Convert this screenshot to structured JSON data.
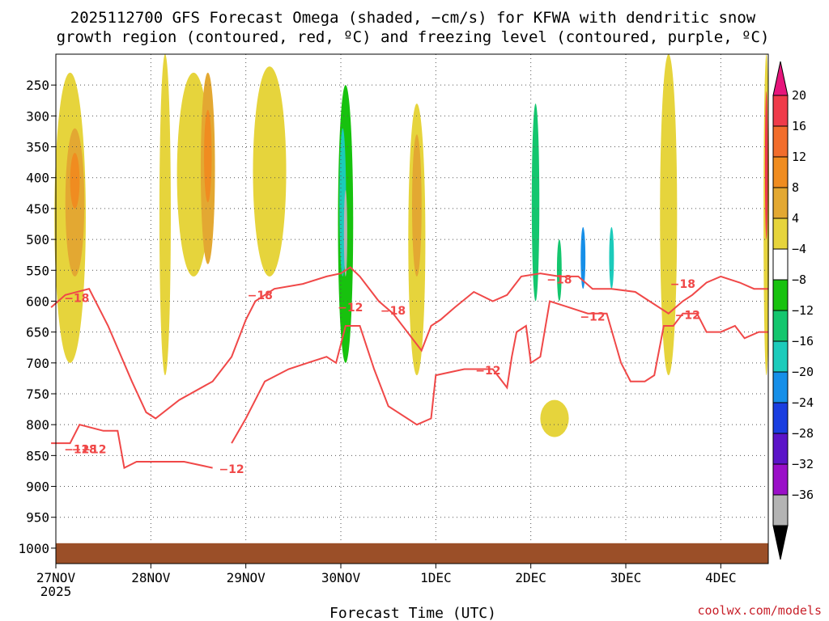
{
  "chart_data": {
    "type": "heatmap",
    "title_line1": "2025112700 GFS Forecast Omega (shaded, −cm/s) for KFWA with dendritic snow",
    "title_line2": "growth region (contoured, red, ºC) and freezing level (contoured, purple, ºC)",
    "xlabel": "Forecast Time (UTC)",
    "ylabel": "",
    "credit": "coolwx.com/models",
    "x_ticks": [
      "27NOV",
      "28NOV",
      "29NOV",
      "30NOV",
      "1DEC",
      "2DEC",
      "3DEC",
      "4DEC"
    ],
    "x_year": "2025",
    "x_range_days": [
      0,
      7.5
    ],
    "y_ticks": [
      250,
      300,
      350,
      400,
      450,
      500,
      550,
      600,
      650,
      700,
      750,
      800,
      850,
      900,
      950,
      1000
    ],
    "y_tick_labels": [
      "250",
      "300",
      "350",
      "400",
      "450",
      "500",
      "550",
      "600",
      "650",
      "700",
      "750",
      "800",
      "850",
      "900",
      "950",
      "1000"
    ],
    "y_range_hpa": [
      200,
      1025
    ],
    "colorbar": {
      "labels": [
        "20",
        "16",
        "12",
        "8",
        "4",
        "−4",
        "−8",
        "−12",
        "−16",
        "−20",
        "−24",
        "−28",
        "−32",
        "−36"
      ],
      "colors": [
        "#ef3b4a",
        "#f26d2c",
        "#f08c20",
        "#e3a832",
        "#e6d43c",
        "#ffffff",
        "#17c20e",
        "#14c66e",
        "#1ccbbb",
        "#168fe8",
        "#1a3ee0",
        "#5b14c8",
        "#9a0fc8",
        "#b4b4b4"
      ],
      "top_arrow_color": "#e6157b",
      "bottom_arrow_color": "#000000"
    },
    "contour_labels": [
      "−18",
      "−12",
      "−18",
      "−12",
      "−12",
      "−18",
      "−12",
      "−18",
      "−12",
      "−18",
      "−12",
      "−18",
      "−12"
    ],
    "contour_color": "#f04848",
    "ground_color": "#9b4f28",
    "shaded_regions": [
      {
        "day": 0.15,
        "p_top": 230,
        "p_bot": 700,
        "width": 0.33,
        "level": "4"
      },
      {
        "day": 0.2,
        "p_top": 320,
        "p_bot": 560,
        "width": 0.2,
        "level": "8"
      },
      {
        "day": 0.2,
        "p_top": 360,
        "p_bot": 450,
        "width": 0.1,
        "level": "12"
      },
      {
        "day": 1.15,
        "p_top": 200,
        "p_bot": 720,
        "width": 0.12,
        "level": "4"
      },
      {
        "day": 1.45,
        "p_top": 230,
        "p_bot": 560,
        "width": 0.35,
        "level": "4"
      },
      {
        "day": 1.6,
        "p_top": 230,
        "p_bot": 540,
        "width": 0.15,
        "level": "8"
      },
      {
        "day": 1.6,
        "p_top": 290,
        "p_bot": 440,
        "width": 0.08,
        "level": "12"
      },
      {
        "day": 2.25,
        "p_top": 220,
        "p_bot": 560,
        "width": 0.35,
        "level": "4"
      },
      {
        "day": 3.05,
        "p_top": 220,
        "p_bot": 870,
        "width": 0.32,
        "level": "-4"
      },
      {
        "day": 3.05,
        "p_top": 250,
        "p_bot": 700,
        "width": 0.16,
        "level": "-8"
      },
      {
        "day": 3.02,
        "p_top": 320,
        "p_bot": 560,
        "width": 0.07,
        "level": "-16"
      },
      {
        "day": 3.05,
        "p_top": 420,
        "p_bot": 560,
        "width": 0.035,
        "level": "-36"
      },
      {
        "day": 2.7,
        "p_top": 300,
        "p_bot": 700,
        "width": 0.1,
        "level": "-4"
      },
      {
        "day": 3.2,
        "p_top": 480,
        "p_bot": 900,
        "width": 0.15,
        "level": "-4"
      },
      {
        "day": 3.8,
        "p_top": 280,
        "p_bot": 720,
        "width": 0.18,
        "level": "4"
      },
      {
        "day": 3.8,
        "p_top": 330,
        "p_bot": 560,
        "width": 0.1,
        "level": "8"
      },
      {
        "day": 4.75,
        "p_top": 200,
        "p_bot": 700,
        "width": 0.07,
        "level": "-4"
      },
      {
        "day": 5.05,
        "p_top": 230,
        "p_bot": 640,
        "width": 0.18,
        "level": "-4"
      },
      {
        "day": 5.05,
        "p_top": 280,
        "p_bot": 600,
        "width": 0.08,
        "level": "-12"
      },
      {
        "day": 5.5,
        "p_top": 230,
        "p_bot": 640,
        "width": 0.35,
        "level": "-4"
      },
      {
        "day": 5.3,
        "p_top": 500,
        "p_bot": 600,
        "width": 0.05,
        "level": "-12"
      },
      {
        "day": 5.55,
        "p_top": 480,
        "p_bot": 580,
        "width": 0.05,
        "level": "-20"
      },
      {
        "day": 5.85,
        "p_top": 480,
        "p_bot": 580,
        "width": 0.05,
        "level": "-16"
      },
      {
        "day": 6.45,
        "p_top": 200,
        "p_bot": 720,
        "width": 0.18,
        "level": "4"
      },
      {
        "day": 7.48,
        "p_top": 200,
        "p_bot": 720,
        "width": 0.06,
        "level": "4"
      },
      {
        "day": 7.48,
        "p_top": 260,
        "p_bot": 500,
        "width": 0.03,
        "level": "20"
      },
      {
        "day": 7.2,
        "p_top": 400,
        "p_bot": 420,
        "width": 0.12,
        "level": "-4"
      },
      {
        "day": 5.25,
        "p_top": 760,
        "p_bot": 820,
        "width": 0.3,
        "level": "4"
      }
    ],
    "contours": {
      "minus18": [
        [
          -0.05,
          610
        ],
        [
          0.1,
          590
        ],
        [
          0.35,
          580
        ],
        [
          0.55,
          640
        ],
        [
          0.8,
          730
        ],
        [
          0.95,
          780
        ],
        [
          1.05,
          790
        ],
        [
          1.3,
          760
        ],
        [
          1.65,
          730
        ],
        [
          1.85,
          690
        ],
        [
          2.0,
          630
        ],
        [
          2.1,
          600
        ],
        [
          2.3,
          580
        ],
        [
          2.6,
          572
        ],
        [
          2.85,
          560
        ],
        [
          3.0,
          555
        ],
        [
          3.1,
          545
        ],
        [
          3.2,
          560
        ],
        [
          3.4,
          600
        ],
        [
          3.55,
          620
        ],
        [
          3.75,
          660
        ],
        [
          3.85,
          680
        ],
        [
          3.95,
          640
        ],
        [
          4.05,
          630
        ],
        [
          4.2,
          610
        ],
        [
          4.4,
          585
        ],
        [
          4.6,
          600
        ],
        [
          4.75,
          590
        ],
        [
          4.9,
          560
        ],
        [
          5.1,
          555
        ],
        [
          5.3,
          560
        ],
        [
          5.5,
          560
        ],
        [
          5.65,
          580
        ],
        [
          5.85,
          580
        ],
        [
          6.1,
          585
        ],
        [
          6.25,
          600
        ],
        [
          6.45,
          620
        ],
        [
          6.6,
          600
        ],
        [
          6.7,
          590
        ],
        [
          6.85,
          570
        ],
        [
          7.0,
          560
        ],
        [
          7.2,
          570
        ],
        [
          7.35,
          580
        ],
        [
          7.5,
          580
        ]
      ],
      "minus12a": [
        [
          -0.05,
          830
        ],
        [
          0.15,
          830
        ],
        [
          0.25,
          800
        ],
        [
          0.5,
          810
        ],
        [
          0.65,
          810
        ],
        [
          0.72,
          870
        ],
        [
          0.85,
          860
        ],
        [
          1.1,
          860
        ],
        [
          1.35,
          860
        ],
        [
          1.65,
          870
        ]
      ],
      "minus12b": [
        [
          1.85,
          830
        ],
        [
          2.0,
          790
        ],
        [
          2.2,
          730
        ],
        [
          2.45,
          710
        ],
        [
          2.65,
          700
        ],
        [
          2.85,
          690
        ],
        [
          2.95,
          700
        ],
        [
          3.05,
          640
        ],
        [
          3.2,
          640
        ],
        [
          3.35,
          710
        ],
        [
          3.5,
          770
        ],
        [
          3.8,
          800
        ],
        [
          3.95,
          790
        ],
        [
          4.0,
          720
        ],
        [
          4.3,
          710
        ],
        [
          4.6,
          710
        ],
        [
          4.75,
          740
        ],
        [
          4.8,
          690
        ],
        [
          4.85,
          650
        ],
        [
          4.95,
          640
        ],
        [
          5.0,
          700
        ],
        [
          5.1,
          690
        ],
        [
          5.2,
          600
        ],
        [
          5.4,
          610
        ],
        [
          5.6,
          620
        ],
        [
          5.8,
          620
        ],
        [
          5.95,
          700
        ],
        [
          6.05,
          730
        ],
        [
          6.2,
          730
        ],
        [
          6.3,
          720
        ],
        [
          6.4,
          640
        ],
        [
          6.5,
          640
        ],
        [
          6.6,
          620
        ],
        [
          6.75,
          620
        ],
        [
          6.85,
          650
        ],
        [
          7.0,
          650
        ],
        [
          7.15,
          640
        ],
        [
          7.25,
          660
        ],
        [
          7.4,
          650
        ],
        [
          7.5,
          650
        ]
      ]
    }
  }
}
